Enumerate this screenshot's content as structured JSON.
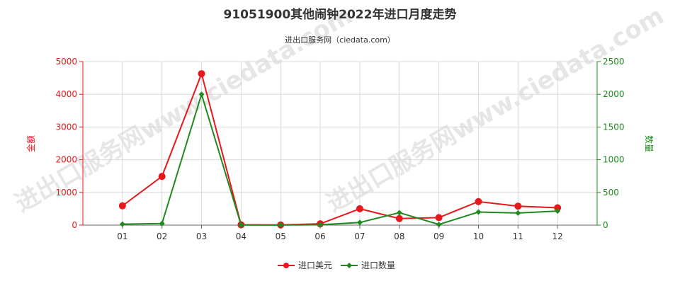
{
  "chart_data": {
    "type": "line",
    "title": "91051900其他闹钟2022年进口月度走势",
    "subtitle": "进出口服务网（ciedata.com）",
    "watermark": "进出口服务网www.ciedata.com",
    "categories": [
      "01",
      "02",
      "03",
      "04",
      "05",
      "06",
      "07",
      "08",
      "09",
      "10",
      "11",
      "12"
    ],
    "y_left": {
      "label": "金额",
      "range": [
        0,
        5000
      ],
      "ticks": [
        0,
        1000,
        2000,
        3000,
        4000,
        5000
      ]
    },
    "y_right": {
      "label": "数量",
      "range": [
        0,
        2500
      ],
      "ticks": [
        0,
        500,
        1000,
        1500,
        2000,
        2500
      ]
    },
    "grid": true,
    "legend_position": "bottom-center",
    "series": [
      {
        "name": "进口美元",
        "axis": "left",
        "color": "#e8171b",
        "marker": "circle",
        "values": [
          590,
          1490,
          4630,
          10,
          5,
          40,
          500,
          200,
          230,
          720,
          580,
          530
        ]
      },
      {
        "name": "进口数量",
        "axis": "right",
        "color": "#1f8a1f",
        "marker": "diamond",
        "values": [
          15,
          25,
          2000,
          2,
          2,
          5,
          40,
          190,
          10,
          200,
          185,
          215
        ]
      }
    ]
  }
}
